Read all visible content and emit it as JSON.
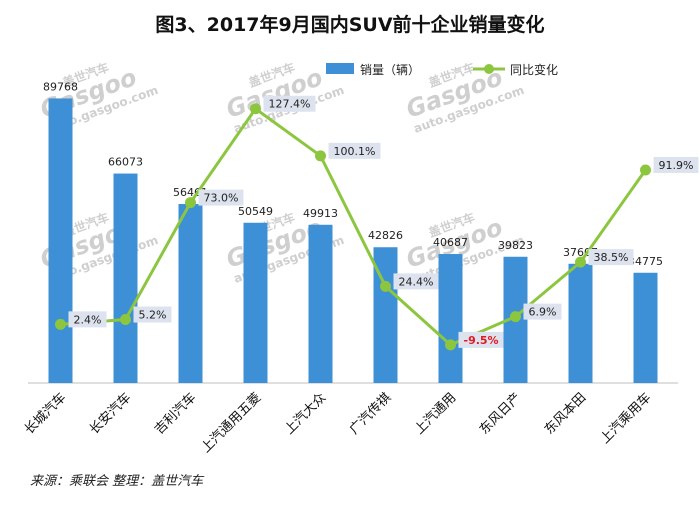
{
  "title": "图3、2017年9月国内SUV前十企业销量变化",
  "source_note": "来源：乘联会   整理：盖世汽车",
  "watermark": {
    "brand": "盖世汽车",
    "logo": "Gasgoo",
    "url": "auto.gasgoo.com"
  },
  "colors": {
    "bar": "#3d8fd6",
    "line": "#8cc63f",
    "label_bg": "#dde3ee",
    "negative_label": "#e0191f"
  },
  "chart_data": {
    "type": "bar",
    "title": "图3、2017年9月国内SUV前十企业销量变化",
    "categories": [
      "长城汽车",
      "长安汽车",
      "吉利汽车",
      "上汽通用五菱",
      "上汽大众",
      "广汽传祺",
      "上汽通用",
      "东风日产",
      "东风本田",
      "上汽乘用车"
    ],
    "series": [
      {
        "name": "销量（辆）",
        "type": "bar",
        "values": [
          89768,
          66073,
          56461,
          50549,
          49913,
          42826,
          40687,
          39823,
          37607,
          34775
        ]
      },
      {
        "name": "同比变化",
        "type": "line",
        "axis": "secondary",
        "values": [
          2.4,
          5.2,
          73.0,
          127.4,
          100.1,
          24.4,
          -9.5,
          6.9,
          38.5,
          91.9
        ],
        "labels": [
          "2.4%",
          "5.2%",
          "73.0%",
          "127.4%",
          "100.1%",
          "24.4%",
          "-9.5%",
          "6.9%",
          "38.5%",
          "91.9%"
        ]
      }
    ],
    "ylim": [
      0,
      100000
    ],
    "y2lim": [
      -20,
      140
    ],
    "legend": "top",
    "grid": false
  }
}
